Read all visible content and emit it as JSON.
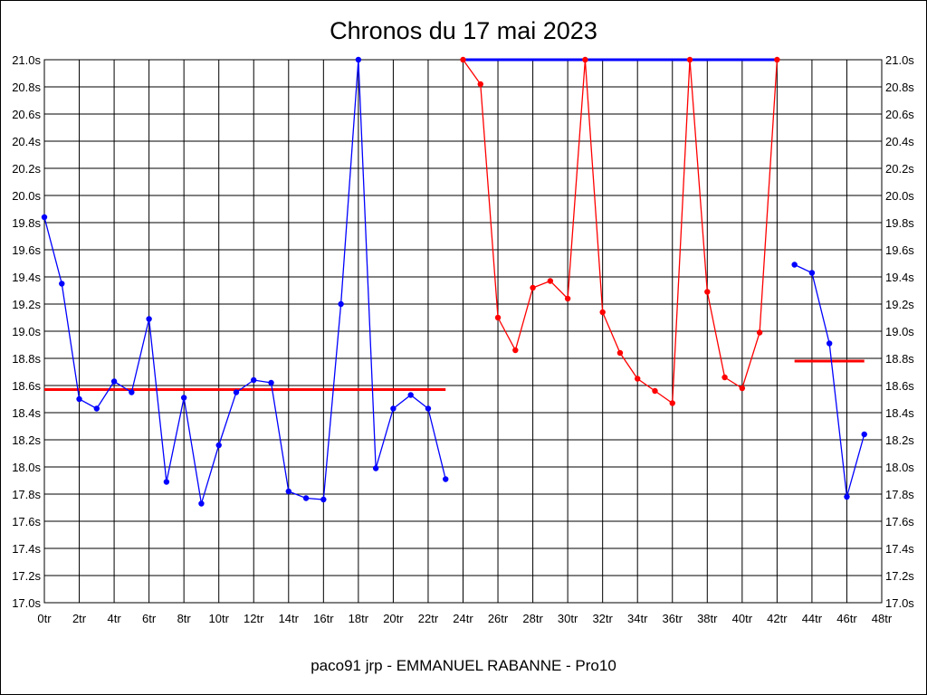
{
  "chart_data": {
    "type": "line",
    "title": "Chronos du 17 mai 2023",
    "footer": "paco91 jrp - EMMANUEL RABANNE - Pro10",
    "ylim": [
      17.0,
      21.0
    ],
    "xlim": [
      0,
      48
    ],
    "y_ticks": [
      "17.0s",
      "17.2s",
      "17.4s",
      "17.6s",
      "17.8s",
      "18.0s",
      "18.2s",
      "18.4s",
      "18.6s",
      "18.8s",
      "19.0s",
      "19.2s",
      "19.4s",
      "19.6s",
      "19.8s",
      "20.0s",
      "20.2s",
      "20.4s",
      "20.6s",
      "20.8s",
      "21.0s"
    ],
    "x_ticks": [
      "0tr",
      "2tr",
      "4tr",
      "6tr",
      "8tr",
      "10tr",
      "12tr",
      "14tr",
      "16tr",
      "18tr",
      "20tr",
      "22tr",
      "24tr",
      "26tr",
      "28tr",
      "30tr",
      "32tr",
      "34tr",
      "36tr",
      "38tr",
      "40tr",
      "42tr",
      "44tr",
      "46tr",
      "48tr"
    ],
    "grid": true,
    "colors": {
      "blue": "#0000ff",
      "red": "#ff0000"
    },
    "series": [
      {
        "color": "#0000ff",
        "x": [
          0,
          1,
          2,
          3,
          4,
          5,
          6,
          7,
          8,
          9,
          10,
          11,
          12,
          13,
          14,
          15,
          16,
          17,
          18,
          19,
          20,
          21,
          22,
          23
        ],
        "y": [
          19.84,
          19.35,
          18.5,
          18.43,
          18.63,
          18.55,
          19.09,
          17.89,
          18.51,
          17.73,
          18.16,
          18.55,
          18.64,
          18.62,
          17.82,
          17.77,
          17.76,
          19.2,
          21.0,
          17.99,
          18.43,
          18.53,
          18.43,
          17.91
        ]
      },
      {
        "color": "#ff0000",
        "x": [
          24,
          25,
          26,
          27,
          28,
          29,
          30,
          31,
          32,
          33,
          34,
          35,
          36,
          37,
          38,
          39,
          40,
          41,
          42
        ],
        "y": [
          21.0,
          20.82,
          19.1,
          18.86,
          19.32,
          19.37,
          19.24,
          21.0,
          19.14,
          18.84,
          18.65,
          18.56,
          18.47,
          21.0,
          19.29,
          18.66,
          18.58,
          18.99,
          21.0
        ]
      },
      {
        "color": "#0000ff",
        "x": [
          43,
          44,
          45,
          46,
          47
        ],
        "y": [
          19.49,
          19.43,
          18.91,
          17.78,
          18.24
        ]
      }
    ],
    "avg_lines": [
      {
        "color": "#ff0000",
        "x0": 0,
        "x1": 23,
        "y": 18.57
      },
      {
        "color": "#0000ff",
        "x0": 24,
        "x1": 42,
        "y": 21.0
      },
      {
        "color": "#ff0000",
        "x0": 43,
        "x1": 47,
        "y": 18.78
      }
    ]
  }
}
